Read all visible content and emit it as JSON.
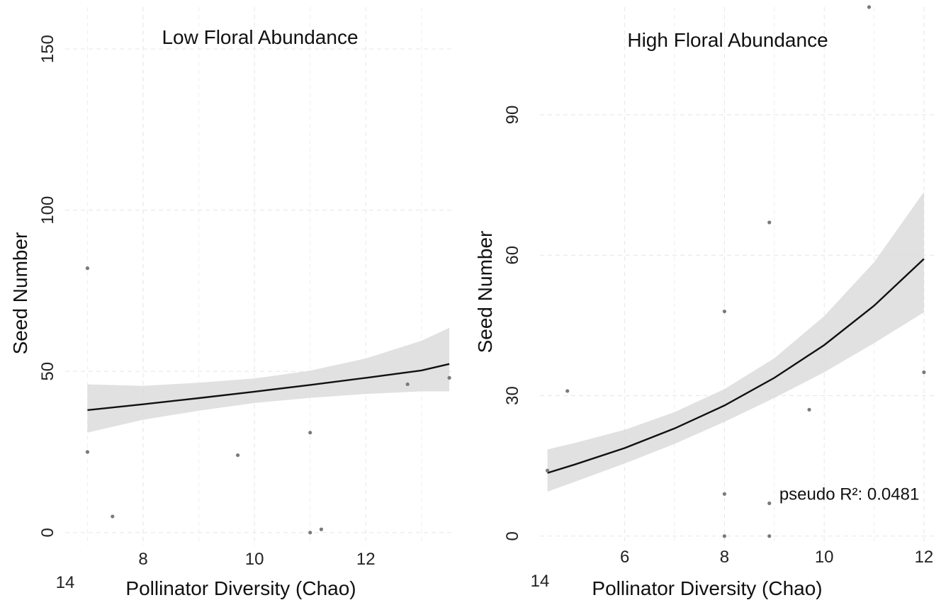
{
  "chart_data": [
    {
      "type": "scatter",
      "title": "Low Floral Abundance",
      "xlabel": "Pollinator Diversity (Chao)",
      "ylabel": "Seed Number",
      "xlim": [
        6.6,
        13.6
      ],
      "ylim": [
        -4,
        163
      ],
      "x_ticks": [
        "8",
        "10",
        "12"
      ],
      "x_tick_values": [
        8,
        10,
        12
      ],
      "x_extra_tick": "14",
      "y_ticks": [
        "0",
        "50",
        "100",
        "150"
      ],
      "y_tick_values": [
        0,
        50,
        100,
        150
      ],
      "x_minor": [
        7,
        9,
        11,
        13
      ],
      "y_minor": [],
      "grid": true,
      "points": [
        {
          "x": 7.0,
          "y": 82
        },
        {
          "x": 7.0,
          "y": 25
        },
        {
          "x": 7.45,
          "y": 5
        },
        {
          "x": 9.7,
          "y": 24
        },
        {
          "x": 11.0,
          "y": 31
        },
        {
          "x": 11.0,
          "y": 0
        },
        {
          "x": 11.2,
          "y": 1
        },
        {
          "x": 12.75,
          "y": 46
        },
        {
          "x": 13.5,
          "y": 48
        }
      ],
      "fit": {
        "x": [
          7.0,
          8.0,
          9.0,
          10.0,
          11.0,
          12.0,
          13.0,
          13.5
        ],
        "y": [
          38,
          39.8,
          41.7,
          43.7,
          45.8,
          48.0,
          50.3,
          52.3
        ],
        "lower": [
          31,
          35.0,
          37.8,
          40.2,
          41.8,
          43.0,
          43.8,
          43.8
        ],
        "upper": [
          46,
          45.5,
          46.5,
          47.8,
          50.2,
          54.0,
          59.5,
          63.5
        ]
      },
      "annotation": ""
    },
    {
      "type": "scatter",
      "title": "High Floral Abundance",
      "xlabel": "Pollinator Diversity (Chao)",
      "ylabel": "Seed Number",
      "xlim": [
        4.3,
        12.2
      ],
      "ylim": [
        -2,
        113
      ],
      "x_ticks": [
        "6",
        "8",
        "10",
        "12"
      ],
      "x_tick_values": [
        6,
        8,
        10,
        12
      ],
      "x_extra_tick": "14",
      "y_ticks": [
        "0",
        "30",
        "60",
        "90"
      ],
      "y_tick_values": [
        0,
        30,
        60,
        90
      ],
      "x_minor": [
        7,
        9,
        11
      ],
      "y_minor": [],
      "grid": true,
      "points": [
        {
          "x": 4.45,
          "y": 14
        },
        {
          "x": 4.85,
          "y": 31
        },
        {
          "x": 8.0,
          "y": 48
        },
        {
          "x": 8.0,
          "y": 9
        },
        {
          "x": 8.0,
          "y": 0
        },
        {
          "x": 8.9,
          "y": 67
        },
        {
          "x": 8.9,
          "y": 7
        },
        {
          "x": 8.9,
          "y": 0
        },
        {
          "x": 9.7,
          "y": 27
        },
        {
          "x": 10.9,
          "y": 113
        },
        {
          "x": 12.0,
          "y": 35
        }
      ],
      "fit": {
        "x": [
          4.45,
          5.0,
          6.0,
          7.0,
          8.0,
          9.0,
          10.0,
          11.0,
          12.0
        ],
        "y": [
          13.5,
          15.3,
          18.8,
          23.0,
          27.9,
          33.8,
          40.8,
          49.2,
          59.2
        ],
        "lower": [
          9.5,
          11.6,
          15.5,
          19.7,
          24.4,
          29.5,
          35.0,
          41.2,
          47.8
        ],
        "upper": [
          18.5,
          19.9,
          22.7,
          26.5,
          31.4,
          38.0,
          47.0,
          58.5,
          73.5
        ]
      },
      "annotation": "pseudo R²: 0.0481",
      "annotation_at": {
        "x": 9.1,
        "y": 9
      }
    }
  ]
}
